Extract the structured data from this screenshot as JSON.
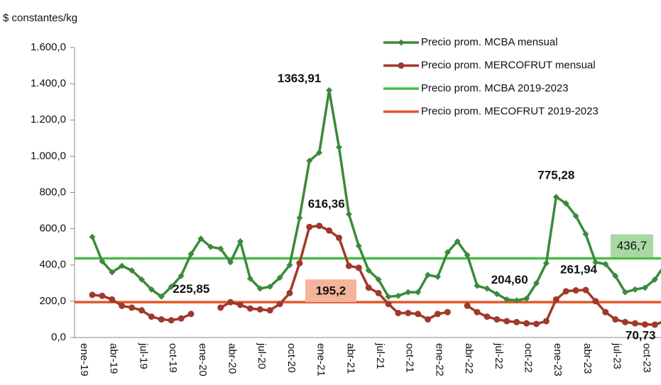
{
  "chart_data": {
    "type": "line",
    "ylabel": "$ constantes/kg",
    "categories": [
      "ene-19",
      null,
      null,
      "abr-19",
      null,
      null,
      "jul-19",
      null,
      null,
      "oct-19",
      null,
      null,
      "ene-20",
      null,
      null,
      "abr-20",
      null,
      null,
      "jul-20",
      null,
      null,
      "oct-20",
      null,
      null,
      "ene-21",
      null,
      null,
      "abr-21",
      null,
      null,
      "jul-21",
      null,
      null,
      "oct-21",
      null,
      null,
      "ene-22",
      null,
      null,
      "abr-22",
      null,
      null,
      "jul-22",
      null,
      null,
      "oct-22",
      null,
      null,
      "ene-23",
      null,
      null,
      "abr-23",
      null,
      null,
      "jul-23",
      null,
      null,
      "oct-23",
      null
    ],
    "series": [
      {
        "name": "Precio prom. MCBA mensual",
        "color": "#3a8a3a",
        "marker": "diamond",
        "values": [
          555,
          420,
          360,
          395,
          370,
          320,
          265,
          225.85,
          280,
          340,
          460,
          545,
          500,
          490,
          415,
          530,
          325,
          270,
          280,
          330,
          400,
          660,
          975,
          1020,
          1363.91,
          1050,
          680,
          505,
          370,
          320,
          225,
          230,
          250,
          250,
          345,
          335,
          470,
          530,
          455,
          285,
          270,
          240,
          210,
          204.6,
          215,
          300,
          410,
          775.28,
          740,
          670,
          570,
          415,
          405,
          340,
          250,
          265,
          275,
          320,
          400
        ],
        "value_labels": [
          null,
          null,
          null,
          null,
          null,
          null,
          null,
          "225,85",
          null,
          null,
          null,
          null,
          null,
          null,
          null,
          null,
          null,
          null,
          null,
          null,
          null,
          null,
          null,
          null,
          "1363,91",
          null,
          null,
          null,
          null,
          null,
          null,
          null,
          null,
          null,
          null,
          null,
          null,
          null,
          null,
          null,
          null,
          null,
          null,
          "204,60",
          null,
          null,
          null,
          "775,28",
          null,
          null,
          null,
          null,
          null,
          null,
          null,
          null,
          null,
          null,
          null
        ]
      },
      {
        "name": "Precio prom. MERCOFRUT mensual",
        "color": "#a0392a",
        "marker": "circle",
        "values": [
          235,
          230,
          210,
          175,
          165,
          150,
          115,
          100,
          95,
          105,
          130,
          null,
          null,
          165,
          195,
          180,
          160,
          155,
          150,
          185,
          245,
          410,
          610,
          616.36,
          590,
          550,
          395,
          385,
          275,
          245,
          185,
          135,
          135,
          130,
          100,
          130,
          140,
          null,
          175,
          140,
          115,
          100,
          90,
          85,
          78,
          75,
          90,
          210,
          255,
          260,
          261.94,
          200,
          140,
          100,
          85,
          78,
          72,
          70.73,
          90
        ],
        "value_labels": [
          null,
          null,
          null,
          null,
          null,
          null,
          null,
          null,
          null,
          null,
          null,
          null,
          null,
          null,
          null,
          null,
          null,
          null,
          null,
          null,
          null,
          null,
          null,
          "616,36",
          null,
          null,
          null,
          null,
          null,
          null,
          null,
          null,
          null,
          null,
          null,
          null,
          null,
          null,
          null,
          null,
          null,
          null,
          null,
          null,
          null,
          null,
          null,
          null,
          null,
          null,
          "261,94",
          null,
          null,
          null,
          null,
          null,
          null,
          "70,73",
          null
        ]
      }
    ],
    "reference_lines": [
      {
        "name": "Precio prom. MCBA 2019-2023",
        "color": "#4cbb47",
        "box_color": "#a9d9a3",
        "value": 436.7,
        "value_label": "436,7"
      },
      {
        "name": "Precio prom. MECOFRUT 2019-2023",
        "color": "#e2572b",
        "box_color": "#f4b49b",
        "value": 195.2,
        "value_label": "195,2"
      }
    ],
    "ylim": [
      0,
      1600
    ],
    "yticks": [
      {
        "value": 0,
        "label": "0,0"
      },
      {
        "value": 200,
        "label": "200,0"
      },
      {
        "value": 400,
        "label": "400,0"
      },
      {
        "value": 600,
        "label": "600,0"
      },
      {
        "value": 800,
        "label": "800,0"
      },
      {
        "value": 1000,
        "label": "1.000,0"
      },
      {
        "value": 1200,
        "label": "1.200,0"
      },
      {
        "value": 1400,
        "label": "1.400,0"
      },
      {
        "value": 1600,
        "label": "1.600,0"
      }
    ]
  }
}
